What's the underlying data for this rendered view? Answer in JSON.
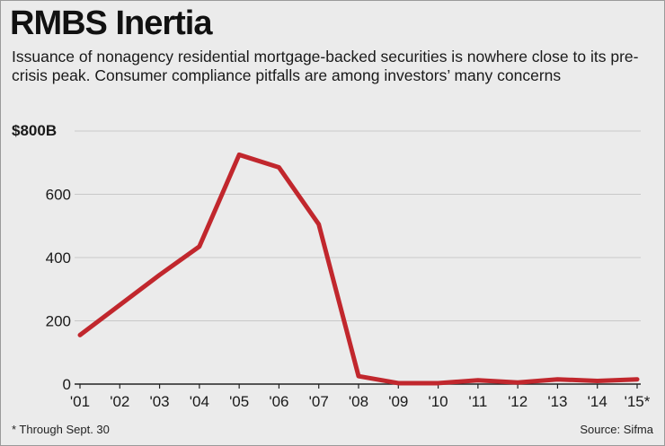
{
  "chart_data": {
    "type": "line",
    "title": "RMBS Inertia",
    "subtitle": "Issuance of nonagency residential mortgage-backed securities is nowhere close to its pre-crisis peak. Consumer compliance pitfalls are among investors’ many concerns",
    "categories": [
      "'01",
      "'02",
      "'03",
      "'04",
      "'05",
      "'06",
      "'07",
      "'08",
      "'09",
      "'10",
      "'11",
      "'12",
      "'13",
      "'14",
      "'15*"
    ],
    "series": [
      {
        "values": [
          155,
          250,
          345,
          435,
          725,
          685,
          505,
          25,
          3,
          3,
          12,
          5,
          15,
          10,
          15
        ]
      }
    ],
    "y_ticks": [
      0,
      200,
      400,
      600,
      800
    ],
    "y_tick_labels": [
      "0",
      "200",
      "400",
      "600",
      "$800B"
    ],
    "ylim": [
      0,
      800
    ],
    "grid": true,
    "line_color": "#c1272d",
    "footnote": "* Through Sept. 30",
    "source": "Source: Sifma"
  }
}
